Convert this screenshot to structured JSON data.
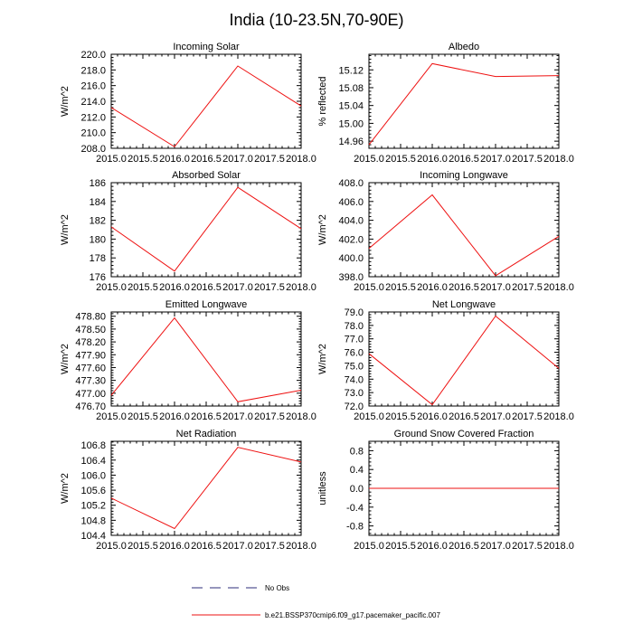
{
  "figure": {
    "title": "India (10-23.5N,70-90E)"
  },
  "legend": {
    "entries": [
      {
        "name": "No Obs",
        "color": "#2c2c7a",
        "dash": true
      },
      {
        "name": "b.e21.BSSP370cmip6.f09_g17.pacemaker_pacific.007",
        "color": "#ee1111",
        "dash": false
      }
    ]
  },
  "chart_data": [
    {
      "type": "line",
      "title": "Incoming Solar",
      "ylabel": "W/m^2",
      "x": [
        2015,
        2016,
        2017,
        2018
      ],
      "series": [
        {
          "name": "b.e21.BSSP370cmip6.f09_g17.pacemaker_pacific.007",
          "color": "#ee1111",
          "values": [
            213.2,
            208.2,
            218.5,
            213.4
          ]
        }
      ],
      "xlim": [
        2015,
        2018
      ],
      "ylim": [
        208.0,
        220.0
      ],
      "xticks": [
        "2015.0",
        "2015.5",
        "2016.0",
        "2016.5",
        "2017.0",
        "2017.5",
        "2018.0"
      ],
      "yticks": [
        "208.0",
        "210.0",
        "212.0",
        "214.0",
        "216.0",
        "218.0",
        "220.0"
      ]
    },
    {
      "type": "line",
      "title": "Albedo",
      "ylabel": "% reflected",
      "x": [
        2015,
        2016,
        2017,
        2018
      ],
      "series": [
        {
          "name": "b.e21.BSSP370cmip6.f09_g17.pacemaker_pacific.007",
          "color": "#ee1111",
          "values": [
            14.952,
            15.134,
            15.105,
            15.107
          ]
        }
      ],
      "xlim": [
        2015,
        2018
      ],
      "ylim": [
        14.944,
        15.155
      ],
      "xticks": [
        "2015.0",
        "2015.5",
        "2016.0",
        "2016.5",
        "2017.0",
        "2017.5",
        "2018.0"
      ],
      "yticks": [
        "14.96",
        "15.00",
        "15.04",
        "15.08",
        "15.12"
      ]
    },
    {
      "type": "line",
      "title": "Absorbed Solar",
      "ylabel": "W/m^2",
      "x": [
        2015,
        2016,
        2017,
        2018
      ],
      "series": [
        {
          "name": "b.e21.BSSP370cmip6.f09_g17.pacemaker_pacific.007",
          "color": "#ee1111",
          "values": [
            181.3,
            176.6,
            185.5,
            181.1
          ]
        }
      ],
      "xlim": [
        2015,
        2018
      ],
      "ylim": [
        176.0,
        186.0
      ],
      "xticks": [
        "2015.0",
        "2015.5",
        "2016.0",
        "2016.5",
        "2017.0",
        "2017.5",
        "2018.0"
      ],
      "yticks": [
        "176",
        "178",
        "180",
        "182",
        "184",
        "186"
      ]
    },
    {
      "type": "line",
      "title": "Incoming Longwave",
      "ylabel": "W/m^2",
      "x": [
        2015,
        2016,
        2017,
        2018
      ],
      "series": [
        {
          "name": "b.e21.BSSP370cmip6.f09_g17.pacemaker_pacific.007",
          "color": "#ee1111",
          "values": [
            401.0,
            406.7,
            398.1,
            402.3
          ]
        }
      ],
      "xlim": [
        2015,
        2018
      ],
      "ylim": [
        398.0,
        408.0
      ],
      "xticks": [
        "2015.0",
        "2015.5",
        "2016.0",
        "2016.5",
        "2017.0",
        "2017.5",
        "2018.0"
      ],
      "yticks": [
        "398.0",
        "400.0",
        "402.0",
        "404.0",
        "406.0",
        "408.0"
      ]
    },
    {
      "type": "line",
      "title": "Emitted Longwave",
      "ylabel": "W/m^2",
      "x": [
        2015,
        2016,
        2017,
        2018
      ],
      "series": [
        {
          "name": "b.e21.BSSP370cmip6.f09_g17.pacemaker_pacific.007",
          "color": "#ee1111",
          "values": [
            476.95,
            478.76,
            476.8,
            477.07
          ]
        }
      ],
      "xlim": [
        2015,
        2018
      ],
      "ylim": [
        476.7,
        478.9
      ],
      "xticks": [
        "2015.0",
        "2015.5",
        "2016.0",
        "2016.5",
        "2017.0",
        "2017.5",
        "2018.0"
      ],
      "yticks": [
        "476.70",
        "477.00",
        "477.30",
        "477.60",
        "477.90",
        "478.20",
        "478.50",
        "478.80"
      ]
    },
    {
      "type": "line",
      "title": "Net Longwave",
      "ylabel": "W/m^2",
      "x": [
        2015,
        2016,
        2017,
        2018
      ],
      "series": [
        {
          "name": "b.e21.BSSP370cmip6.f09_g17.pacemaker_pacific.007",
          "color": "#ee1111",
          "values": [
            75.9,
            72.1,
            78.7,
            74.8
          ]
        }
      ],
      "xlim": [
        2015,
        2018
      ],
      "ylim": [
        72.0,
        79.0
      ],
      "xticks": [
        "2015.0",
        "2015.5",
        "2016.0",
        "2016.5",
        "2017.0",
        "2017.5",
        "2018.0"
      ],
      "yticks": [
        "72.0",
        "73.0",
        "74.0",
        "75.0",
        "76.0",
        "77.0",
        "78.0",
        "79.0"
      ]
    },
    {
      "type": "line",
      "title": "Net Radiation",
      "ylabel": "W/m^2",
      "x": [
        2015,
        2016,
        2017,
        2018
      ],
      "series": [
        {
          "name": "b.e21.BSSP370cmip6.f09_g17.pacemaker_pacific.007",
          "color": "#ee1111",
          "values": [
            105.39,
            104.58,
            106.74,
            106.35
          ]
        }
      ],
      "xlim": [
        2015,
        2018
      ],
      "ylim": [
        104.4,
        106.9
      ],
      "xticks": [
        "2015.0",
        "2015.5",
        "2016.0",
        "2016.5",
        "2017.0",
        "2017.5",
        "2018.0"
      ],
      "yticks": [
        "104.4",
        "104.8",
        "105.2",
        "105.6",
        "106.0",
        "106.4",
        "106.8"
      ]
    },
    {
      "type": "line",
      "title": "Ground Snow Covered Fraction",
      "ylabel": "unitless",
      "x": [
        2015,
        2016,
        2017,
        2018
      ],
      "series": [
        {
          "name": "b.e21.BSSP370cmip6.f09_g17.pacemaker_pacific.007",
          "color": "#ee1111",
          "values": [
            0,
            0,
            0,
            0
          ]
        }
      ],
      "xlim": [
        2015,
        2018
      ],
      "ylim": [
        -1.0,
        1.0
      ],
      "xticks": [
        "2015.0",
        "2015.5",
        "2016.0",
        "2016.5",
        "2017.0",
        "2017.5",
        "2018.0"
      ],
      "yticks": [
        "-0.8",
        "-0.4",
        "0.0",
        "0.4",
        "0.8"
      ]
    }
  ]
}
